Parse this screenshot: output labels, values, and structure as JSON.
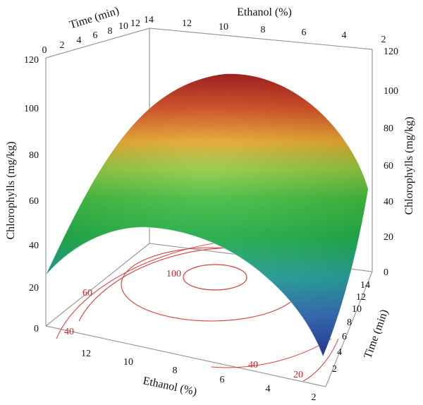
{
  "chart_data": {
    "type": "surface",
    "title": "",
    "zlabel": "Chlorophylls (mg/kg)",
    "xlabel": "Ethanol (%)",
    "ylabel": "Time (min)",
    "zlim": [
      0,
      120
    ],
    "z_ticks": [
      "0",
      "20",
      "40",
      "60",
      "80",
      "100",
      "120"
    ],
    "z_ticks_right": [
      "0",
      "20",
      "40",
      "60",
      "80",
      "100",
      "120"
    ],
    "ethanol_ticks_front": [
      "12",
      "10",
      "8",
      "6",
      "4",
      "2"
    ],
    "ethanol_ticks_back": [
      "12",
      "10",
      "8",
      "6",
      "4",
      "2"
    ],
    "time_ticks_right": [
      "2",
      "4",
      "6",
      "8",
      "10",
      "12",
      "14"
    ],
    "time_ticks_back": [
      "0",
      "2",
      "4",
      "6",
      "8",
      "10",
      "12",
      "14"
    ],
    "contour_levels": [
      "100",
      "60",
      "40",
      "40",
      "20"
    ],
    "surface_points": [
      {
        "ethanol": 14,
        "time": 14,
        "chlorophylls": 25
      },
      {
        "ethanol": 10,
        "time": 7,
        "chlorophylls": 111
      },
      {
        "ethanol": 2,
        "time": 0,
        "chlorophylls": 44
      },
      {
        "ethanol": 4,
        "time": 2,
        "chlorophylls": 0
      }
    ],
    "colormap": [
      "#2a3f9e",
      "#3a73c2",
      "#2aa896",
      "#1fb04f",
      "#49c23a",
      "#8cc83a",
      "#e8a82a",
      "#d4471f",
      "#a71915"
    ]
  }
}
